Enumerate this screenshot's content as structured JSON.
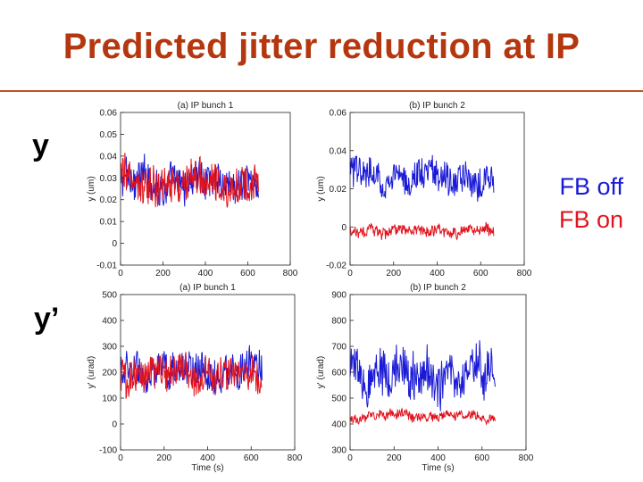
{
  "slide": {
    "title": "Predicted jitter reduction at IP",
    "row_labels": {
      "y": "y",
      "y_prime": "y’"
    },
    "legend": [
      {
        "label": "FB off",
        "color": "#1a1ad6"
      },
      {
        "label": "FB on",
        "color": "#e0141e"
      }
    ]
  },
  "chart_data": [
    {
      "id": "y-bunch1",
      "type": "line",
      "title": "(a) IP bunch 1",
      "xlabel": "",
      "ylabel": "y (um)",
      "xlim": [
        0,
        800
      ],
      "ylim": [
        -0.01,
        0.06
      ],
      "xticks": [
        0,
        200,
        400,
        600,
        800
      ],
      "xtick_labels": [
        "0",
        "200",
        "400",
        "600",
        "800"
      ],
      "yticks": [
        -0.01,
        0,
        0.01,
        0.02,
        0.03,
        0.04,
        0.05,
        0.06
      ],
      "ytick_labels": [
        "-0.01",
        "0",
        "0.01",
        "0.02",
        "0.03",
        "0.04",
        "0.05",
        "0.06"
      ],
      "series": [
        {
          "name": "FB off",
          "color": "#1a1ad6",
          "mean": 0.028,
          "amplitude": 0.011,
          "x_end": 650
        },
        {
          "name": "FB on",
          "color": "#e0141e",
          "mean": 0.027,
          "amplitude": 0.012,
          "x_end": 650
        }
      ]
    },
    {
      "id": "y-bunch2",
      "type": "line",
      "title": "(b) IP bunch 2",
      "xlabel": "",
      "ylabel": "y (um)",
      "xlim": [
        0,
        800
      ],
      "ylim": [
        -0.02,
        0.06
      ],
      "xticks": [
        0,
        200,
        400,
        600,
        800
      ],
      "xtick_labels": [
        "0",
        "200",
        "400",
        "600",
        "800"
      ],
      "yticks": [
        -0.02,
        0,
        0.02,
        0.04,
        0.06
      ],
      "ytick_labels": [
        "-0.02",
        "0",
        "0.02",
        "0.04",
        "0.06"
      ],
      "series": [
        {
          "name": "FB off",
          "color": "#1a1ad6",
          "mean": 0.026,
          "amplitude": 0.011,
          "x_end": 660
        },
        {
          "name": "FB on",
          "color": "#e0141e",
          "mean": -0.002,
          "amplitude": 0.004,
          "x_end": 660
        }
      ]
    },
    {
      "id": "yp-bunch1",
      "type": "line",
      "title": "(a) IP bunch 1",
      "xlabel": "Time (s)",
      "ylabel": "y' (urad)",
      "xlim": [
        0,
        800
      ],
      "ylim": [
        -100,
        500
      ],
      "xticks": [
        0,
        200,
        400,
        600,
        800
      ],
      "xtick_labels": [
        "0",
        "200",
        "400",
        "600",
        "800"
      ],
      "yticks": [
        -100,
        0,
        100,
        200,
        300,
        400,
        500
      ],
      "ytick_labels": [
        "-100",
        "0",
        "100",
        "200",
        "300",
        "400",
        "500"
      ],
      "series": [
        {
          "name": "FB off",
          "color": "#1a1ad6",
          "mean": 200,
          "amplitude": 95,
          "x_end": 650
        },
        {
          "name": "FB on",
          "color": "#e0141e",
          "mean": 195,
          "amplitude": 90,
          "x_end": 650
        }
      ]
    },
    {
      "id": "yp-bunch2",
      "type": "line",
      "title": "(b) IP bunch 2",
      "xlabel": "Time (s)",
      "ylabel": "y' (urad)",
      "xlim": [
        0,
        800
      ],
      "ylim": [
        300,
        900
      ],
      "xticks": [
        0,
        200,
        400,
        600,
        800
      ],
      "xtick_labels": [
        "0",
        "200",
        "400",
        "600",
        "800"
      ],
      "yticks": [
        300,
        400,
        500,
        600,
        700,
        800,
        900
      ],
      "ytick_labels": [
        "300",
        "400",
        "500",
        "600",
        "700",
        "800",
        "900"
      ],
      "series": [
        {
          "name": "FB off",
          "color": "#1a1ad6",
          "mean": 590,
          "amplitude": 120,
          "x_end": 660
        },
        {
          "name": "FB on",
          "color": "#e0141e",
          "mean": 430,
          "amplitude": 25,
          "x_end": 660
        }
      ]
    }
  ]
}
